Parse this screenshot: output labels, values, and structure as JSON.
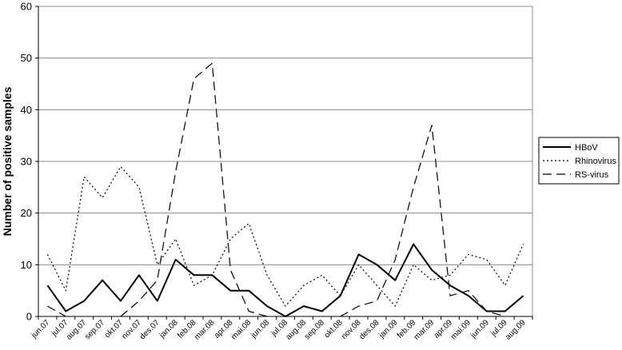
{
  "chart_data": {
    "type": "line",
    "ylabel": "Number of positive samples",
    "xlabel": "",
    "ylim": [
      0,
      60
    ],
    "yticks": [
      0,
      10,
      20,
      30,
      40,
      50,
      60
    ],
    "grid": true,
    "legend_position": "right",
    "categories": [
      "jun.07",
      "jul.07",
      "aug.07",
      "sep.07",
      "okt.07",
      "nov.07",
      "des.07",
      "jan.08",
      "feb.08",
      "mar.08",
      "apr.08",
      "mai.08",
      "jun.08",
      "jul.08",
      "aug.08",
      "sep.08",
      "okt.08",
      "nov.08",
      "des.08",
      "jan.09",
      "feb.09",
      "mar.09",
      "apr.09",
      "mai.09",
      "jun.09",
      "jul.09",
      "aug.09"
    ],
    "series": [
      {
        "name": "HBoV",
        "style": "solid",
        "color": "#000000",
        "values": [
          6,
          1,
          3,
          7,
          3,
          8,
          3,
          11,
          8,
          8,
          5,
          5,
          2,
          0,
          2,
          1,
          4,
          12,
          10,
          7,
          14,
          9,
          6,
          4,
          1,
          1,
          4
        ]
      },
      {
        "name": "Rhinovirus",
        "style": "dotted",
        "color": "#000000",
        "values": [
          12,
          5,
          27,
          23,
          29,
          25,
          10,
          15,
          6,
          8,
          15,
          18,
          8,
          2,
          6,
          8,
          4,
          10,
          6,
          2,
          10,
          7,
          8,
          12,
          11,
          6,
          14
        ]
      },
      {
        "name": "RS-virus",
        "style": "dashed",
        "color": "#000000",
        "values": [
          2,
          0,
          null,
          null,
          0,
          3,
          7,
          28,
          46,
          49,
          9,
          1,
          0,
          null,
          null,
          null,
          0,
          2,
          3,
          11,
          25,
          37,
          4,
          5,
          1,
          0,
          null
        ]
      }
    ]
  }
}
